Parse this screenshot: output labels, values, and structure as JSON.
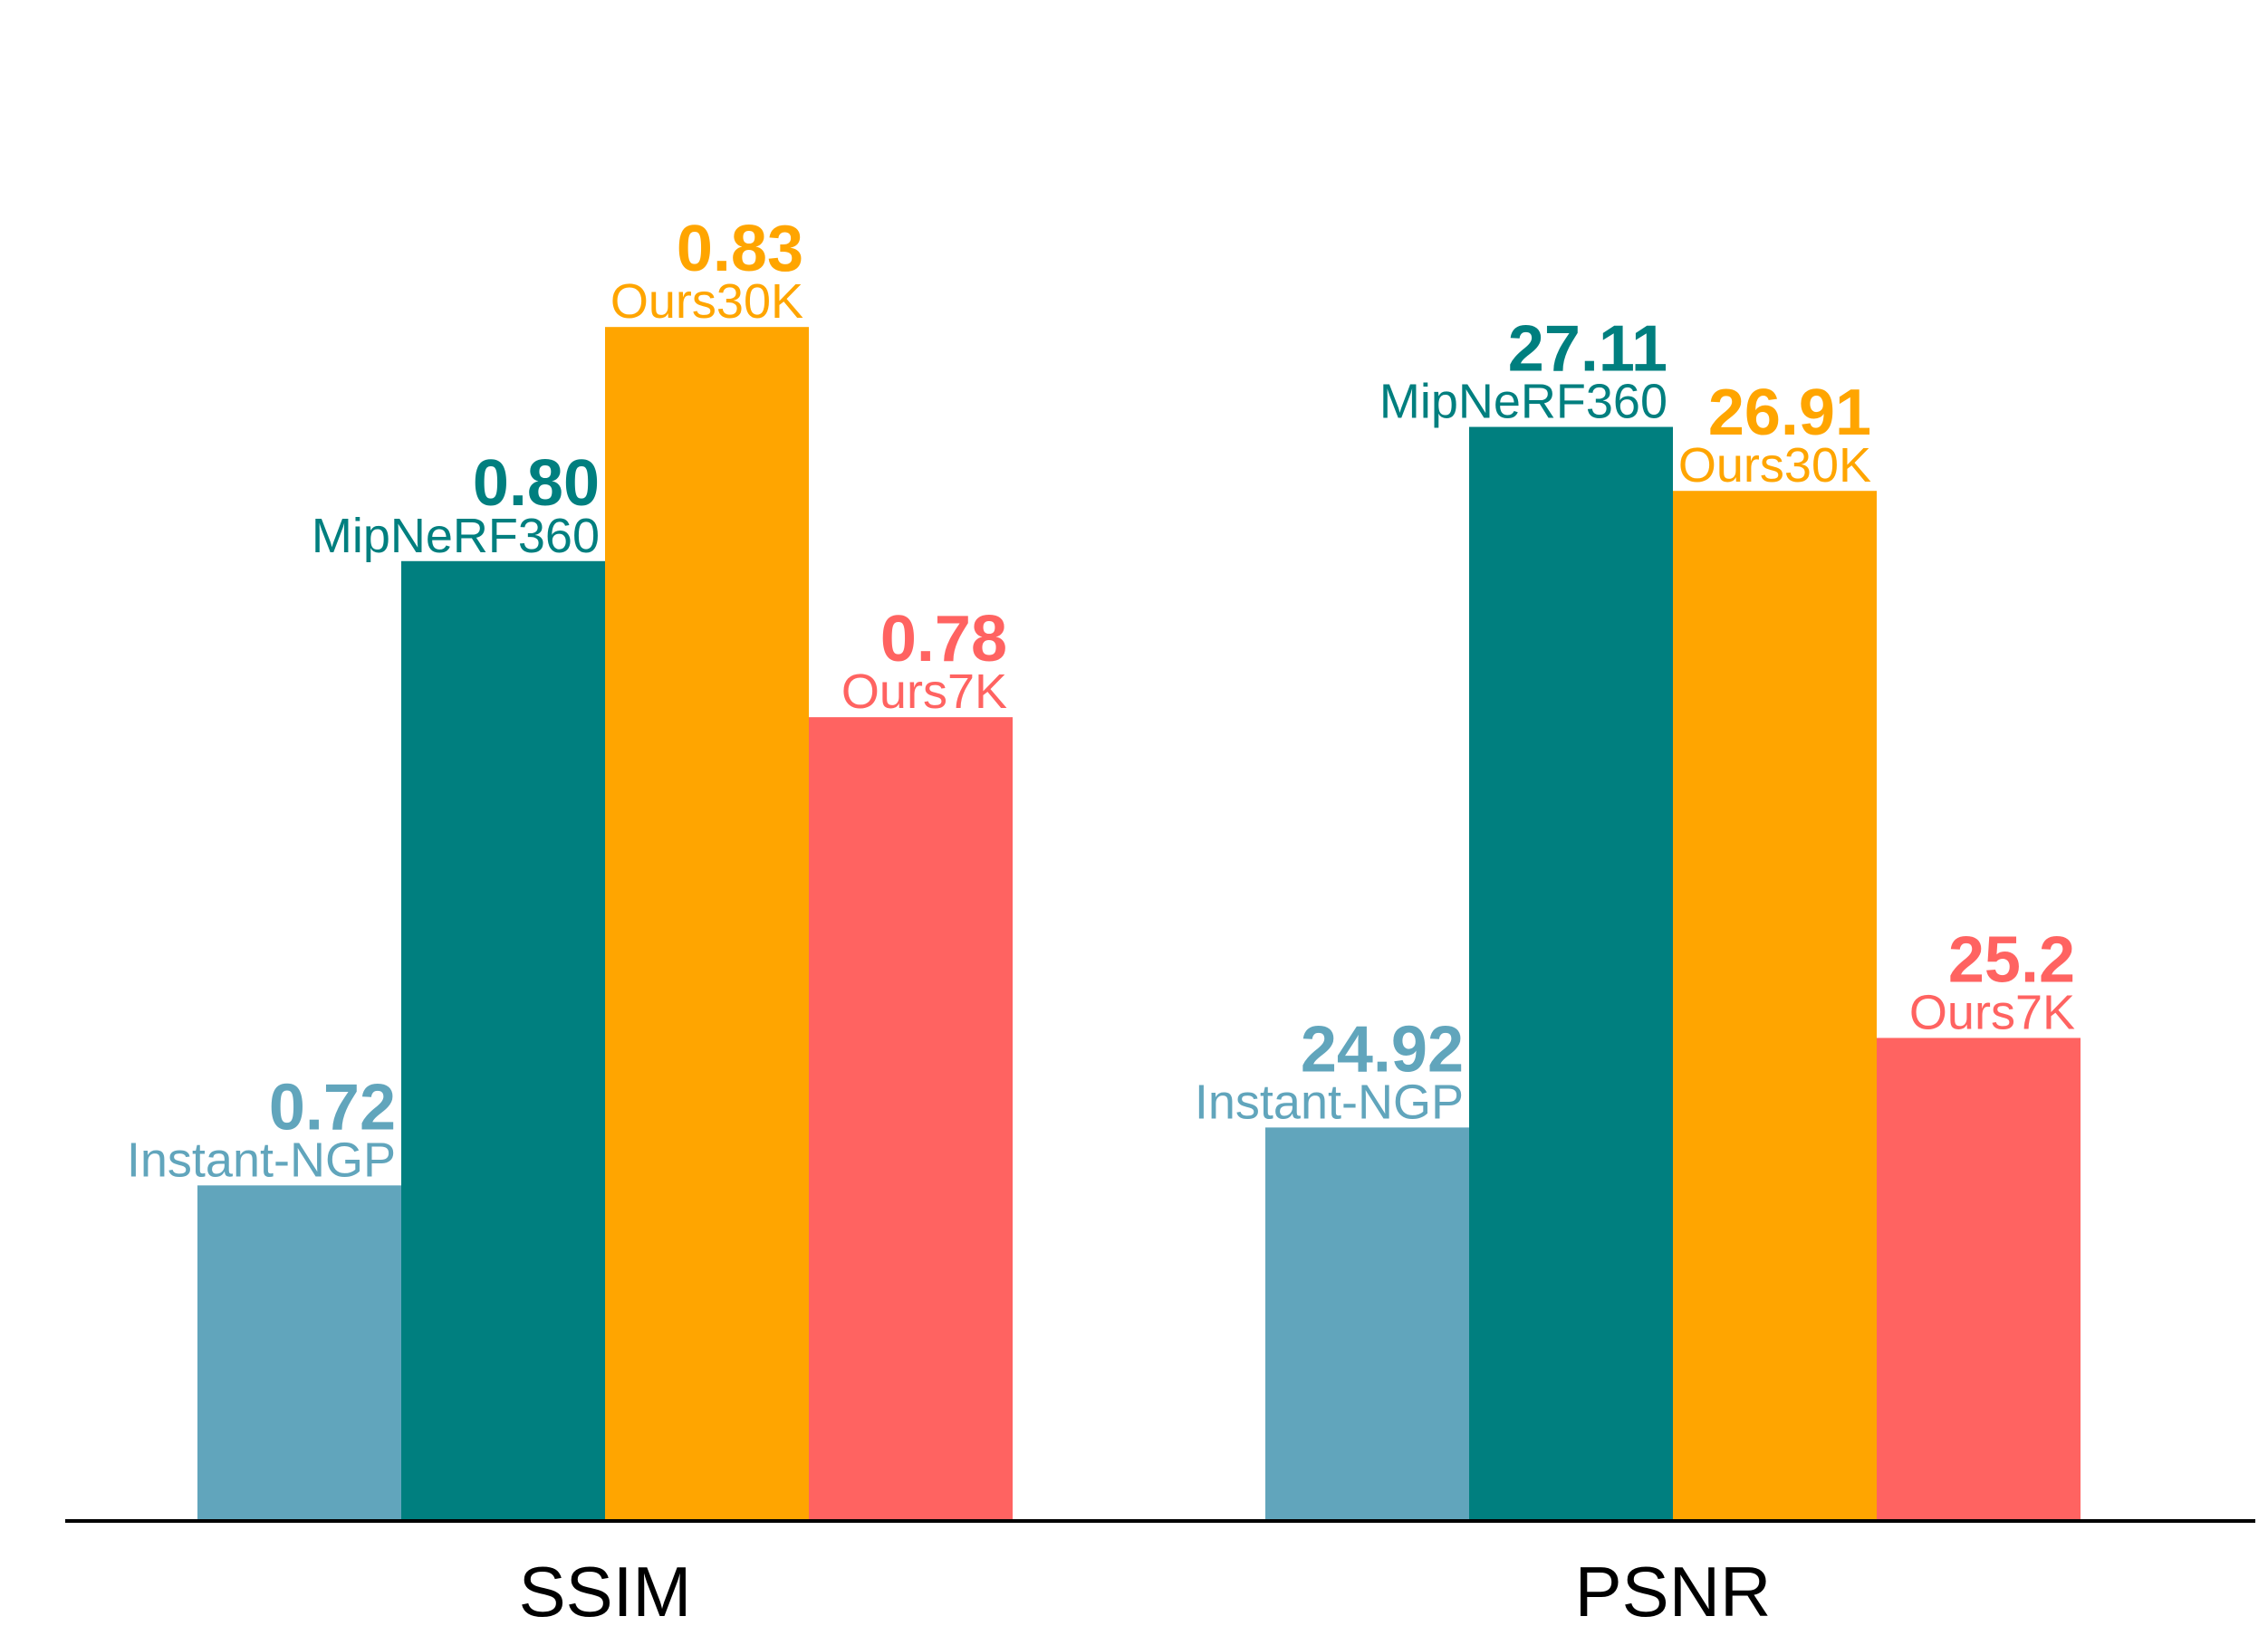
{
  "chart_data": {
    "type": "bar",
    "categories": [
      "SSIM",
      "PSNR"
    ],
    "series": [
      {
        "name": "Instant-NGP",
        "color": "#61A5BC",
        "values": [
          0.72,
          24.92
        ],
        "labels": [
          "0.72",
          "24.92"
        ]
      },
      {
        "name": "MipNeRF360",
        "color": "#007F7F",
        "values": [
          0.8,
          27.11
        ],
        "labels": [
          "0.80",
          "27.11"
        ]
      },
      {
        "name": "Ours30K",
        "color": "#FFA500",
        "values": [
          0.83,
          26.91
        ],
        "labels": [
          "0.83",
          "26.91"
        ]
      },
      {
        "name": "Ours7K",
        "color": "#FF6361",
        "values": [
          0.78,
          25.2
        ],
        "labels": [
          "0.78",
          "25.2"
        ]
      }
    ],
    "panels": [
      {
        "category": "SSIM",
        "ylim": [
          0.677,
          0.8545
        ]
      },
      {
        "category": "PSNR",
        "ylim": [
          23.69,
          28.02
        ]
      }
    ],
    "legend": "none",
    "grid": false
  }
}
